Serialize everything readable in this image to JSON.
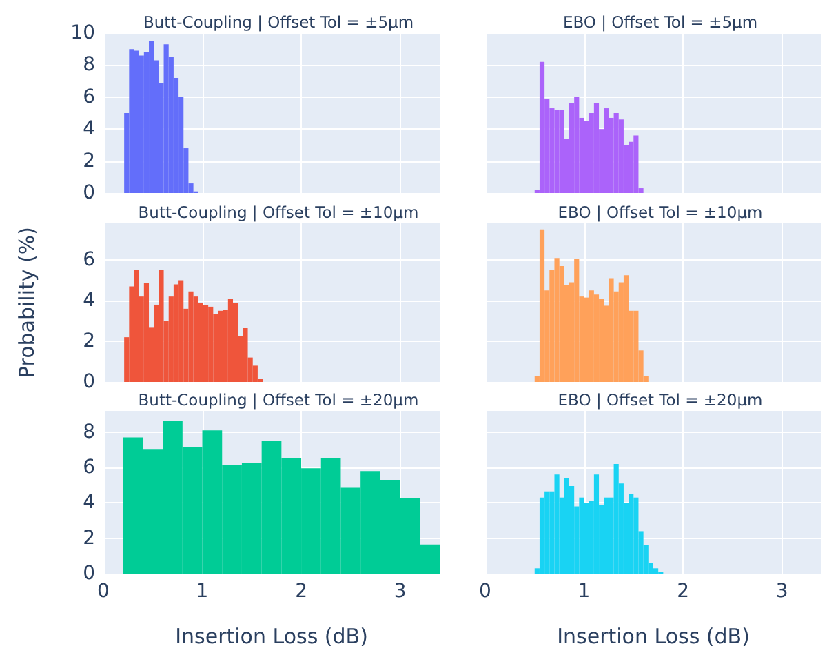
{
  "chart_data": [
    {
      "type": "histogram",
      "title": "Butt-Coupling | Offset Tol = ±5μm",
      "color": "#636efa",
      "bins": [
        0.21,
        0.26,
        0.31,
        0.36,
        0.41,
        0.46,
        0.51,
        0.56,
        0.61,
        0.66,
        0.71,
        0.76,
        0.81,
        0.86,
        0.91,
        0.96
      ],
      "values": [
        5.0,
        9.0,
        8.9,
        8.6,
        8.8,
        9.5,
        8.3,
        6.9,
        9.3,
        8.5,
        7.2,
        6.0,
        2.8,
        0.6,
        0.1
      ],
      "xlim": [
        0,
        3.4
      ],
      "xticks": [
        0,
        1,
        2,
        3
      ],
      "ylim": [
        0,
        10
      ],
      "yticks": [
        0,
        2,
        4,
        6,
        8,
        10
      ],
      "grid": true,
      "tick_labels": "y"
    },
    {
      "type": "histogram",
      "title": "EBO | Offset Tol = ±5μm",
      "color": "#ab63fa",
      "bins": [
        0.5,
        0.55,
        0.6,
        0.65,
        0.7,
        0.75,
        0.8,
        0.85,
        0.9,
        0.95,
        1.0,
        1.05,
        1.1,
        1.15,
        1.2,
        1.25,
        1.3,
        1.35,
        1.4,
        1.45,
        1.5,
        1.55,
        1.6
      ],
      "values": [
        0.2,
        8.2,
        5.9,
        5.3,
        5.2,
        5.2,
        3.4,
        5.6,
        6.0,
        4.7,
        4.5,
        5.0,
        5.6,
        4.0,
        5.3,
        4.7,
        5.0,
        4.6,
        3.0,
        3.2,
        3.6,
        0.3
      ],
      "xlim": [
        0,
        3.4
      ],
      "xticks": [
        0,
        1,
        2,
        3
      ],
      "ylim": [
        0,
        10
      ],
      "yticks": [
        0,
        2,
        4,
        6,
        8,
        10
      ],
      "grid": true,
      "tick_labels": false
    },
    {
      "type": "histogram",
      "title": "Butt-Coupling | Offset Tol = ±10μm",
      "ylabel": "Probability (%)",
      "color": "#ef553b",
      "bins": [
        0.21,
        0.26,
        0.31,
        0.36,
        0.41,
        0.46,
        0.51,
        0.56,
        0.61,
        0.66,
        0.71,
        0.76,
        0.81,
        0.86,
        0.91,
        0.96,
        1.01,
        1.06,
        1.11,
        1.16,
        1.21,
        1.26,
        1.31,
        1.36,
        1.41,
        1.46,
        1.51,
        1.56,
        1.61
      ],
      "values": [
        2.2,
        4.7,
        5.5,
        4.2,
        4.85,
        2.7,
        3.8,
        5.5,
        3.0,
        4.2,
        4.8,
        5.0,
        3.6,
        4.45,
        4.2,
        3.9,
        3.8,
        3.7,
        3.35,
        3.5,
        3.55,
        4.1,
        3.9,
        2.25,
        2.65,
        1.2,
        0.8,
        0.15
      ],
      "xlim": [
        0,
        3.4
      ],
      "xticks": [
        0,
        1,
        2,
        3
      ],
      "ylim": [
        0,
        7.8
      ],
      "yticks": [
        0,
        2,
        4,
        6
      ],
      "grid": true,
      "tick_labels": "y"
    },
    {
      "type": "histogram",
      "title": "EBO | Offset Tol = ±10μm",
      "color": "#ffa15a",
      "bins": [
        0.5,
        0.55,
        0.6,
        0.65,
        0.7,
        0.75,
        0.8,
        0.85,
        0.9,
        0.95,
        1.0,
        1.05,
        1.1,
        1.15,
        1.2,
        1.25,
        1.3,
        1.35,
        1.4,
        1.45,
        1.5,
        1.55,
        1.6,
        1.65
      ],
      "values": [
        0.3,
        7.5,
        4.5,
        5.5,
        6.1,
        5.7,
        4.75,
        4.9,
        6.05,
        4.2,
        4.15,
        4.5,
        4.3,
        4.1,
        3.75,
        5.1,
        4.45,
        4.9,
        5.25,
        3.5,
        3.5,
        1.55,
        0.3
      ],
      "xlim": [
        0,
        3.4
      ],
      "xticks": [
        0,
        1,
        2,
        3
      ],
      "ylim": [
        0,
        7.8
      ],
      "yticks": [
        0,
        2,
        4,
        6
      ],
      "grid": true,
      "tick_labels": false
    },
    {
      "type": "histogram",
      "title": "Butt-Coupling | Offset Tol = ±20μm",
      "xlabel": "Insertion Loss (dB)",
      "color": "#00cc96",
      "bins": [
        0.2,
        0.4,
        0.6,
        0.8,
        1.0,
        1.2,
        1.4,
        1.6,
        1.8,
        2.0,
        2.2,
        2.4,
        2.6,
        2.8,
        3.0,
        3.2,
        3.4
      ],
      "values": [
        7.7,
        7.05,
        8.65,
        7.15,
        8.1,
        6.15,
        6.25,
        7.5,
        6.55,
        5.95,
        6.55,
        4.85,
        5.8,
        5.3,
        4.25,
        1.65
      ],
      "xlim": [
        0,
        3.4
      ],
      "xticks": [
        0,
        1,
        2,
        3
      ],
      "ylim": [
        0,
        9.2
      ],
      "yticks": [
        0,
        2,
        4,
        6,
        8
      ],
      "grid": true
    },
    {
      "type": "histogram",
      "title": "EBO | Offset Tol = ±20μm",
      "xlabel": "Insertion Loss (dB)",
      "color": "#19d3f3",
      "bins": [
        0.5,
        0.55,
        0.6,
        0.65,
        0.7,
        0.75,
        0.8,
        0.85,
        0.9,
        0.95,
        1.0,
        1.05,
        1.1,
        1.15,
        1.2,
        1.25,
        1.3,
        1.35,
        1.4,
        1.45,
        1.5,
        1.55,
        1.6,
        1.65,
        1.7,
        1.75,
        1.8
      ],
      "values": [
        0.3,
        4.3,
        4.65,
        4.65,
        5.6,
        4.3,
        5.4,
        4.95,
        3.8,
        4.3,
        4.0,
        4.1,
        5.6,
        3.9,
        4.3,
        4.3,
        6.2,
        5.1,
        4.0,
        4.5,
        4.3,
        2.4,
        1.6,
        0.6,
        0.3,
        0.1
      ],
      "xlim": [
        0,
        3.4
      ],
      "xticks": [
        0,
        1,
        2,
        3
      ],
      "ylim": [
        0,
        9.2
      ],
      "yticks": [
        0,
        2,
        4,
        6,
        8
      ],
      "grid": true,
      "tick_labels": "x"
    }
  ]
}
